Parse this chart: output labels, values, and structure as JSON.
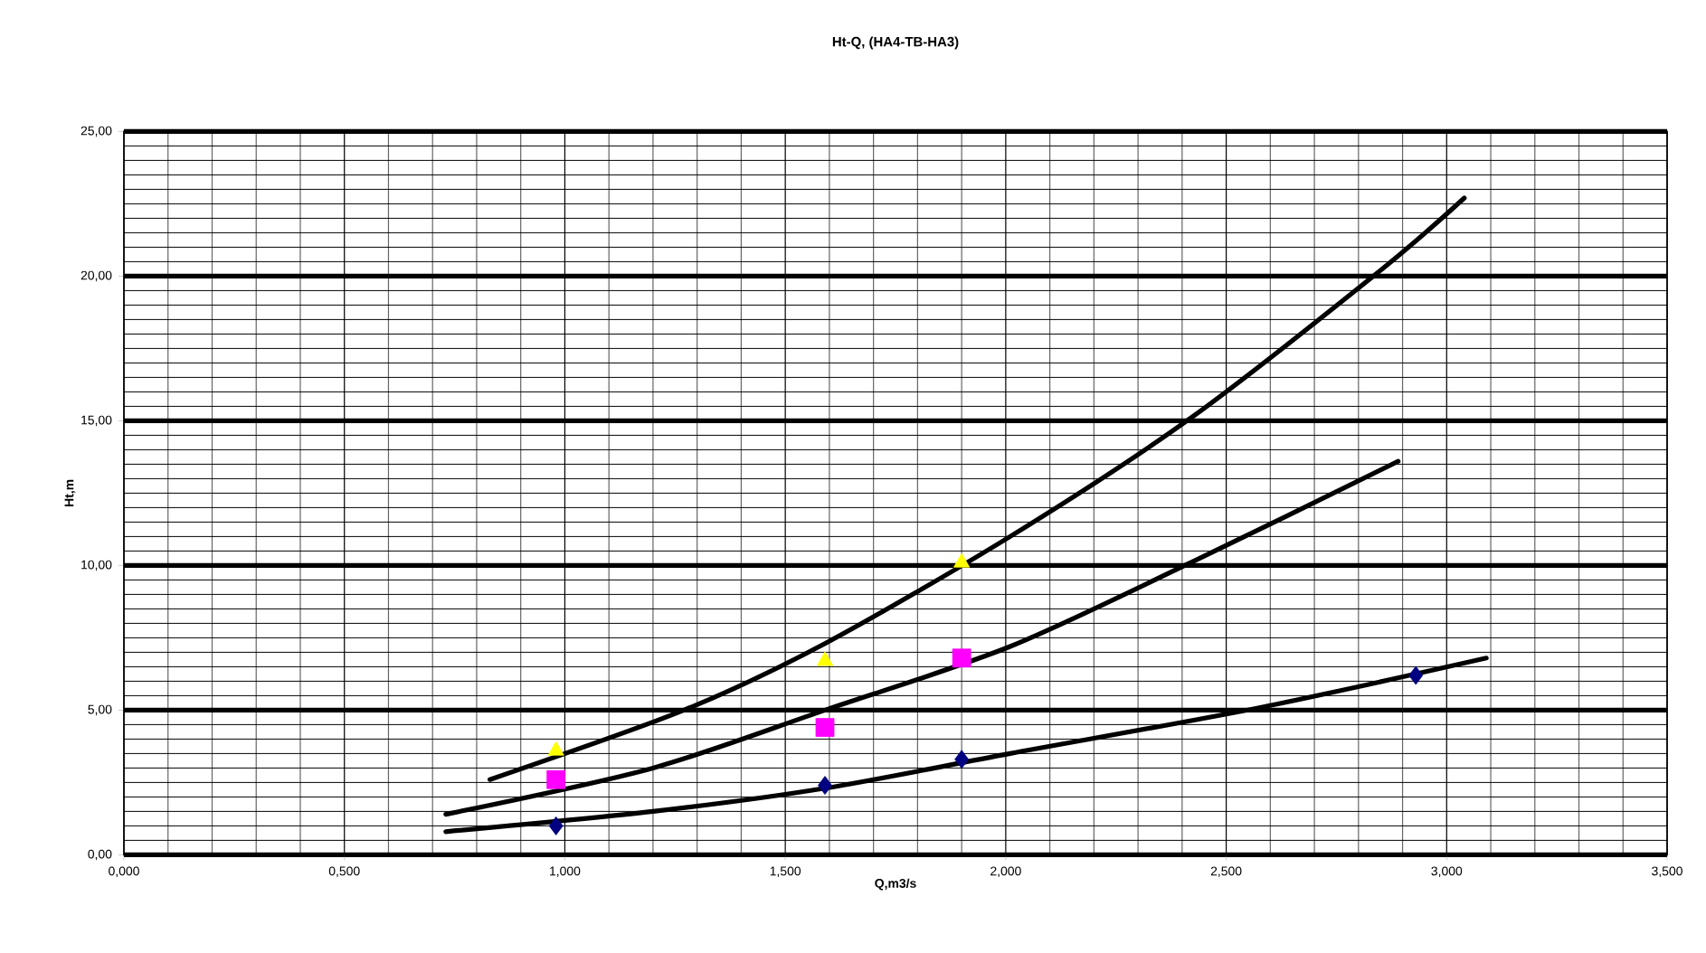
{
  "chart_data": {
    "type": "scatter",
    "title": "Ht-Q, (HA4-TB-HA3)",
    "xlabel": "Q,m3/s",
    "ylabel": "Ht,m",
    "xlim": [
      0,
      3.5
    ],
    "ylim": [
      0,
      25
    ],
    "xticks": [
      {
        "value": 0,
        "label": "0,000"
      },
      {
        "value": 0.5,
        "label": "0,500"
      },
      {
        "value": 1,
        "label": "1,000"
      },
      {
        "value": 1.5,
        "label": "1,500"
      },
      {
        "value": 2,
        "label": "2,000"
      },
      {
        "value": 2.5,
        "label": "2,500"
      },
      {
        "value": 3,
        "label": "3,000"
      },
      {
        "value": 3.5,
        "label": "3,500"
      }
    ],
    "yticks": [
      {
        "value": 0,
        "label": "0,00"
      },
      {
        "value": 5,
        "label": "5,00"
      },
      {
        "value": 10,
        "label": "10,00"
      },
      {
        "value": 15,
        "label": "15,00"
      },
      {
        "value": 20,
        "label": "20,00"
      },
      {
        "value": 25,
        "label": "25,00"
      }
    ],
    "grid": true,
    "series": [
      {
        "marker": "diamond",
        "color": "#000080",
        "x": [
          0.98,
          1.59,
          1.9,
          2.93
        ],
        "values": [
          1.0,
          2.4,
          3.3,
          6.2
        ]
      },
      {
        "marker": "square",
        "color": "#ff00ff",
        "x": [
          0.98,
          1.59,
          1.9
        ],
        "values": [
          2.6,
          4.4,
          6.8
        ]
      },
      {
        "marker": "triangle",
        "color": "#ffff00",
        "x": [
          0.98,
          1.59,
          1.9
        ],
        "values": [
          3.6,
          6.7,
          10.1
        ]
      },
      {
        "type": "line",
        "marker": "none",
        "color": "#000000",
        "x": [
          0.83,
          1.27,
          1.59,
          2.01,
          2.42,
          2.85,
          3.04
        ],
        "values": [
          2.6,
          5.0,
          7.3,
          11.0,
          15.1,
          20.2,
          22.7
        ]
      },
      {
        "type": "line",
        "marker": "none",
        "color": "#000000",
        "x": [
          0.73,
          1.2,
          1.59,
          2.01,
          2.42,
          2.89
        ],
        "values": [
          1.4,
          3.0,
          5.0,
          7.2,
          10.1,
          13.6
        ]
      },
      {
        "type": "line",
        "marker": "none",
        "color": "#000000",
        "x": [
          0.73,
          1.2,
          1.59,
          2.01,
          2.58,
          3.09
        ],
        "values": [
          0.8,
          1.5,
          2.3,
          3.5,
          5.1,
          6.8
        ]
      }
    ]
  }
}
